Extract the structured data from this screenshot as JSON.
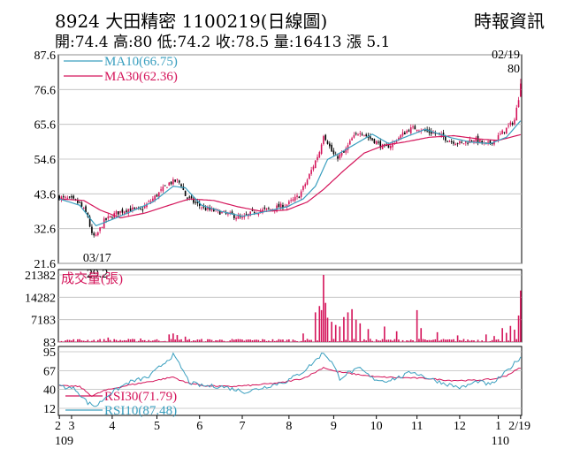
{
  "header": {
    "title": "8924  大田精密 1100219(日線圖)",
    "ohlc": "開:74.4 高:80 低:74.2 收:78.5 量:16413 漲 5.1",
    "source": "時報資訊"
  },
  "colors": {
    "up": "#d4145a",
    "down": "#000000",
    "ma10": "#3a9fbf",
    "ma30": "#d4145a",
    "volume": "#d4145a",
    "rsi30": "#d4145a",
    "rsi10": "#3a9fbf",
    "grid": "#bbbbbb"
  },
  "chart_data": [
    {
      "type": "candlestick",
      "panel": "price",
      "y_ticks": [
        "87.6",
        "76.6",
        "65.6",
        "54.6",
        "43.6",
        "32.6",
        "21.6"
      ],
      "ylim": [
        21.6,
        87.6
      ],
      "legend": [
        {
          "name": "MA10(66.75)",
          "color": "#3a9fbf"
        },
        {
          "name": "MA30(62.36)",
          "color": "#d4145a"
        }
      ],
      "annotations": [
        {
          "date": "03/17",
          "value": "29.2"
        },
        {
          "date": "02/19",
          "value": "80"
        }
      ],
      "anchors": [
        [
          0,
          42.5
        ],
        [
          6,
          41.8
        ],
        [
          10,
          40.5
        ],
        [
          14,
          36.5
        ],
        [
          16,
          30.5
        ],
        [
          18,
          30.0
        ],
        [
          22,
          35.0
        ],
        [
          28,
          37.5
        ],
        [
          34,
          38.8
        ],
        [
          40,
          38.5
        ],
        [
          46,
          42.0
        ],
        [
          50,
          44.5
        ],
        [
          54,
          47.0
        ],
        [
          58,
          47.8
        ],
        [
          60,
          46.5
        ],
        [
          62,
          43.0
        ],
        [
          66,
          41.0
        ],
        [
          72,
          38.8
        ],
        [
          78,
          38.0
        ],
        [
          84,
          37.0
        ],
        [
          90,
          35.8
        ],
        [
          96,
          38.0
        ],
        [
          104,
          38.8
        ],
        [
          112,
          40.2
        ],
        [
          118,
          43.0
        ],
        [
          122,
          48.0
        ],
        [
          126,
          54.0
        ],
        [
          128,
          57.0
        ],
        [
          130,
          62.5
        ],
        [
          132,
          60.0
        ],
        [
          134,
          57.0
        ],
        [
          136,
          55.0
        ],
        [
          140,
          56.5
        ],
        [
          144,
          61.0
        ],
        [
          148,
          63.5
        ],
        [
          152,
          61.5
        ],
        [
          156,
          60.0
        ],
        [
          160,
          58.0
        ],
        [
          164,
          59.5
        ],
        [
          168,
          62.0
        ],
        [
          172,
          64.0
        ],
        [
          176,
          64.5
        ],
        [
          180,
          63.5
        ],
        [
          186,
          62.5
        ],
        [
          192,
          60.5
        ],
        [
          198,
          59.5
        ],
        [
          204,
          61.0
        ],
        [
          210,
          59.0
        ],
        [
          214,
          60.5
        ],
        [
          218,
          63.0
        ],
        [
          222,
          65.5
        ],
        [
          224,
          67.0
        ],
        [
          226,
          74.0
        ],
        [
          227,
          78.5
        ]
      ],
      "ma10_anchors": [
        [
          0,
          42.0
        ],
        [
          10,
          40.0
        ],
        [
          18,
          33.5
        ],
        [
          26,
          35.5
        ],
        [
          36,
          38.2
        ],
        [
          46,
          41.0
        ],
        [
          56,
          46.0
        ],
        [
          62,
          45.5
        ],
        [
          70,
          40.0
        ],
        [
          80,
          38.0
        ],
        [
          90,
          36.5
        ],
        [
          100,
          37.8
        ],
        [
          112,
          39.5
        ],
        [
          120,
          42.0
        ],
        [
          126,
          46.0
        ],
        [
          132,
          54.5
        ],
        [
          138,
          56.5
        ],
        [
          146,
          59.5
        ],
        [
          154,
          62.5
        ],
        [
          162,
          59.5
        ],
        [
          170,
          61.5
        ],
        [
          180,
          64.0
        ],
        [
          192,
          61.5
        ],
        [
          202,
          60.0
        ],
        [
          212,
          59.5
        ],
        [
          220,
          61.5
        ],
        [
          227,
          66.75
        ]
      ],
      "ma30_anchors": [
        [
          0,
          42.0
        ],
        [
          12,
          41.5
        ],
        [
          20,
          38.5
        ],
        [
          30,
          36.0
        ],
        [
          42,
          37.5
        ],
        [
          54,
          40.0
        ],
        [
          64,
          42.0
        ],
        [
          76,
          41.5
        ],
        [
          88,
          39.5
        ],
        [
          100,
          38.0
        ],
        [
          112,
          38.5
        ],
        [
          122,
          41.0
        ],
        [
          130,
          45.0
        ],
        [
          140,
          51.0
        ],
        [
          150,
          56.5
        ],
        [
          160,
          59.0
        ],
        [
          170,
          60.0
        ],
        [
          182,
          61.5
        ],
        [
          194,
          62.0
        ],
        [
          206,
          61.0
        ],
        [
          216,
          60.5
        ],
        [
          227,
          62.36
        ]
      ]
    },
    {
      "type": "bar",
      "panel": "volume",
      "series_label": "成交量(張)",
      "y_ticks": [
        "21382",
        "14282",
        "7183",
        "83"
      ],
      "ylim": [
        83,
        21382
      ],
      "spikes": [
        [
          24,
          1500
        ],
        [
          40,
          1200
        ],
        [
          54,
          2500
        ],
        [
          56,
          2800
        ],
        [
          58,
          2300
        ],
        [
          62,
          1800
        ],
        [
          120,
          2800
        ],
        [
          126,
          9500
        ],
        [
          128,
          11500
        ],
        [
          129,
          10200
        ],
        [
          130,
          21382
        ],
        [
          131,
          12500
        ],
        [
          132,
          7800
        ],
        [
          134,
          6500
        ],
        [
          136,
          5500
        ],
        [
          138,
          5000
        ],
        [
          140,
          8000
        ],
        [
          142,
          9500
        ],
        [
          144,
          10500
        ],
        [
          146,
          7200
        ],
        [
          148,
          6000
        ],
        [
          152,
          4200
        ],
        [
          160,
          5000
        ],
        [
          166,
          3500
        ],
        [
          176,
          10200
        ],
        [
          178,
          4500
        ],
        [
          186,
          3200
        ],
        [
          196,
          2200
        ],
        [
          210,
          2500
        ],
        [
          214,
          2000
        ],
        [
          218,
          4500
        ],
        [
          220,
          3000
        ],
        [
          222,
          5200
        ],
        [
          224,
          4000
        ],
        [
          226,
          8500
        ],
        [
          227,
          16413
        ]
      ]
    },
    {
      "type": "line",
      "panel": "rsi",
      "y_ticks": [
        "95",
        "67",
        "40",
        "12"
      ],
      "ylim": [
        12,
        95
      ],
      "series": [
        {
          "name": "RSI30(71.79)",
          "color": "#d4145a",
          "anchors": [
            [
              0,
              45
            ],
            [
              10,
              44
            ],
            [
              16,
              30
            ],
            [
              22,
              38
            ],
            [
              34,
              46
            ],
            [
              46,
              52
            ],
            [
              56,
              58
            ],
            [
              62,
              50
            ],
            [
              72,
              45
            ],
            [
              84,
              44
            ],
            [
              96,
              46
            ],
            [
              110,
              50
            ],
            [
              120,
              56
            ],
            [
              126,
              65
            ],
            [
              130,
              72
            ],
            [
              136,
              66
            ],
            [
              146,
              62
            ],
            [
              156,
              58
            ],
            [
              168,
              57
            ],
            [
              180,
              56
            ],
            [
              192,
              53
            ],
            [
              204,
              53
            ],
            [
              214,
              55
            ],
            [
              220,
              60
            ],
            [
              227,
              71.79
            ]
          ]
        },
        {
          "name": "RSI10(87.48)",
          "color": "#3a9fbf",
          "anchors": [
            [
              0,
              45
            ],
            [
              8,
              40
            ],
            [
              14,
              20
            ],
            [
              18,
              15
            ],
            [
              24,
              32
            ],
            [
              34,
              50
            ],
            [
              44,
              58
            ],
            [
              52,
              80
            ],
            [
              56,
              90
            ],
            [
              60,
              72
            ],
            [
              64,
              50
            ],
            [
              70,
              45
            ],
            [
              80,
              44
            ],
            [
              92,
              36
            ],
            [
              102,
              44
            ],
            [
              112,
              52
            ],
            [
              120,
              66
            ],
            [
              126,
              82
            ],
            [
              130,
              94
            ],
            [
              134,
              80
            ],
            [
              138,
              56
            ],
            [
              142,
              64
            ],
            [
              148,
              70
            ],
            [
              154,
              56
            ],
            [
              160,
              52
            ],
            [
              168,
              58
            ],
            [
              174,
              66
            ],
            [
              180,
              58
            ],
            [
              190,
              48
            ],
            [
              198,
              42
            ],
            [
              206,
              52
            ],
            [
              212,
              46
            ],
            [
              218,
              60
            ],
            [
              222,
              72
            ],
            [
              227,
              87.48
            ]
          ]
        }
      ]
    },
    {
      "type": "axis",
      "panel": "date",
      "x_labels": [
        {
          "label": "2",
          "index": 0
        },
        {
          "label": "3",
          "index": 6
        },
        {
          "label": "4",
          "index": 26
        },
        {
          "label": "5",
          "index": 48
        },
        {
          "label": "6",
          "index": 69
        },
        {
          "label": "7",
          "index": 90
        },
        {
          "label": "8",
          "index": 113
        },
        {
          "label": "9",
          "index": 135
        },
        {
          "label": "10",
          "index": 156
        },
        {
          "label": "11",
          "index": 176
        },
        {
          "label": "12",
          "index": 197
        },
        {
          "label": "1",
          "index": 216
        },
        {
          "label": "2/19",
          "index": 227
        }
      ],
      "year_labels": [
        {
          "label": "109",
          "index": 0
        },
        {
          "label": "110",
          "index": 216
        }
      ],
      "count": 228
    }
  ]
}
